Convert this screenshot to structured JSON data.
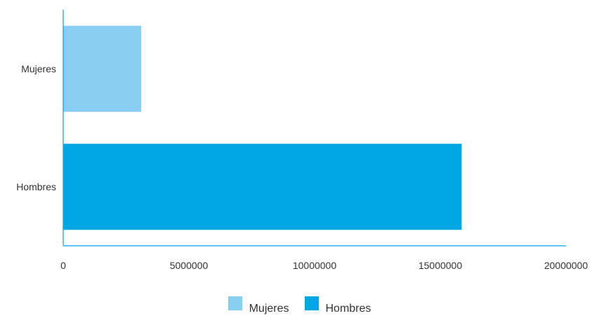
{
  "chart_data": {
    "type": "bar",
    "orientation": "horizontal",
    "title": "",
    "xlabel": "",
    "ylabel": "",
    "categories": [
      "Mujeres",
      "Hombres"
    ],
    "series": [
      {
        "name": "Mujeres",
        "category": "Mujeres",
        "value": 3100000,
        "color": "#87CEF2"
      },
      {
        "name": "Hombres",
        "category": "Hombres",
        "value": 15850000,
        "color": "#00A6E2"
      }
    ],
    "xlim": [
      0,
      20000000
    ],
    "xticks": [
      "0",
      "5000000",
      "10000000",
      "15000000",
      "20000000"
    ],
    "grid": false,
    "legend_position": "bottom",
    "axis_color": "#00A6E2"
  }
}
